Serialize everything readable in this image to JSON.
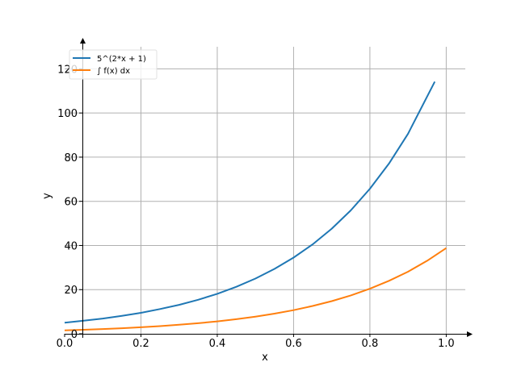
{
  "chart_data": {
    "type": "line",
    "title": "",
    "xlabel": "x",
    "ylabel": "y",
    "xlim": [
      0,
      1.05
    ],
    "ylim": [
      0,
      130
    ],
    "xticks": [
      0.0,
      0.2,
      0.4,
      0.6,
      0.8,
      1.0
    ],
    "xtick_labels": [
      "0.0",
      "0.2",
      "0.4",
      "0.6",
      "0.8",
      "1.0"
    ],
    "yticks": [
      0,
      20,
      40,
      60,
      80,
      100,
      120
    ],
    "ytick_labels": [
      "0",
      "20",
      "40",
      "60",
      "80",
      "100",
      "120"
    ],
    "grid": true,
    "legend": "top-left",
    "series": [
      {
        "name": "5^(2*x + 1)",
        "color": "#1f77b4",
        "x": [
          0,
          0.05,
          0.1,
          0.15,
          0.2,
          0.25,
          0.3,
          0.35,
          0.4,
          0.45,
          0.5,
          0.55,
          0.6,
          0.65,
          0.7,
          0.75,
          0.8,
          0.85,
          0.9,
          0.97
        ],
        "y": [
          5.0,
          5.9,
          6.9,
          8.1,
          9.5,
          11.2,
          13.1,
          15.4,
          18.1,
          21.3,
          25.0,
          29.4,
          34.5,
          40.5,
          47.6,
          55.9,
          65.7,
          77.1,
          90.6,
          114.2
        ]
      },
      {
        "name": "∫ f(x) dx",
        "color": "#ff7f0e",
        "x": [
          0,
          0.05,
          0.1,
          0.15,
          0.2,
          0.25,
          0.3,
          0.35,
          0.4,
          0.45,
          0.5,
          0.55,
          0.6,
          0.65,
          0.7,
          0.75,
          0.8,
          0.85,
          0.9,
          0.95,
          1.0
        ],
        "y": [
          1.55,
          1.82,
          2.14,
          2.52,
          2.96,
          3.47,
          4.08,
          4.79,
          5.63,
          6.61,
          7.77,
          9.12,
          10.7,
          12.6,
          14.8,
          17.4,
          20.4,
          24.0,
          28.1,
          33.1,
          38.8
        ]
      }
    ]
  }
}
